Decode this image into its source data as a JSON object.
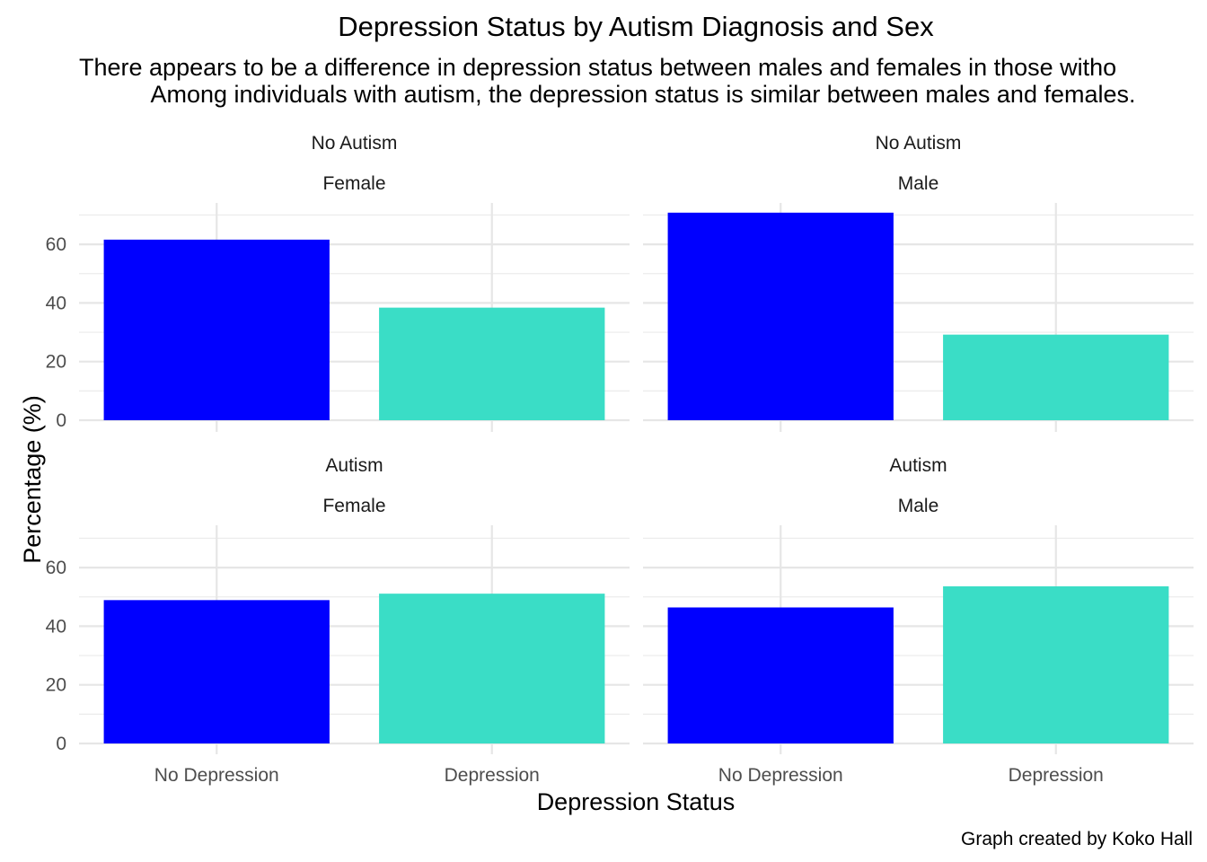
{
  "chart_data": {
    "type": "bar",
    "title": "Depression Status by Autism Diagnosis and Sex",
    "subtitle_lines": [
      "There appears to be a difference in depression status between males and females in those witho",
      "Among individuals with autism, the depression status is similar between males and females."
    ],
    "xlabel": "Depression Status",
    "ylabel": "Percentage (%)",
    "caption": "Graph created by Koko Hall",
    "categories": [
      "No Depression",
      "Depression"
    ],
    "yticks": [
      0,
      20,
      40,
      60
    ],
    "ylim": [
      0,
      73.5
    ],
    "grid": true,
    "colors": {
      "No Depression": "#0000FF",
      "Depression": "#3ADDC6"
    },
    "panels": [
      {
        "row": "No Autism",
        "col": "Female",
        "values": [
          61.6,
          38.4
        ]
      },
      {
        "row": "No Autism",
        "col": "Male",
        "values": [
          70.8,
          29.2
        ]
      },
      {
        "row": "Autism",
        "col": "Female",
        "values": [
          48.9,
          51.1
        ]
      },
      {
        "row": "Autism",
        "col": "Male",
        "values": [
          46.4,
          53.6
        ]
      }
    ]
  }
}
